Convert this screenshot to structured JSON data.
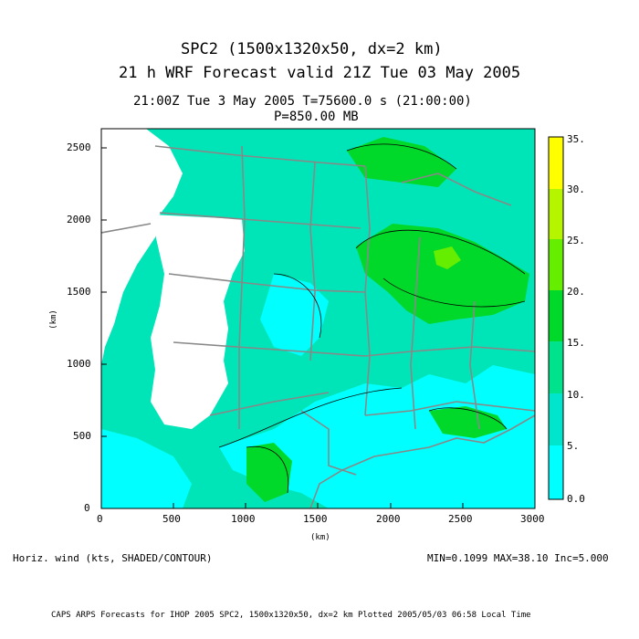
{
  "header": {
    "line1": "SPC2 (1500x1320x50, dx=2 km)",
    "line2": "21 h WRF Forecast valid 21Z Tue 03 May 2005",
    "line3": "21:00Z Tue  3 May 2005     T=75600.0 s (21:00:00)",
    "line4": "P=850.00 MB"
  },
  "map": {
    "x_axis_label": "(km)",
    "y_axis_label": "(km)",
    "x_ticks": [
      "0",
      "500",
      "1000",
      "1500",
      "2000",
      "2500",
      "3000"
    ],
    "y_ticks": [
      "0",
      "500",
      "1000",
      "1500",
      "2000",
      "2500"
    ],
    "x_range": [
      0,
      3000
    ],
    "y_range": [
      0,
      2640
    ]
  },
  "colorbar": {
    "labels": [
      "0.0",
      "5.",
      "10.",
      "15.",
      "20.",
      "25.",
      "30.",
      "35."
    ],
    "colors": [
      "#00ffff",
      "#00e5cc",
      "#00e38c",
      "#00d82a",
      "#66ee00",
      "#b6f500",
      "#ffff00"
    ]
  },
  "field_description": "Horiz. wind (kts, SHADED/CONTOUR)",
  "stats": "MIN=0.1099 MAX=38.10 Inc=5.000",
  "footer": "CAPS ARPS Forecasts for IHOP 2005  SPC2, 1500x1320x50, dx=2 km  Plotted 2005/05/03 06:58 Local Time"
}
